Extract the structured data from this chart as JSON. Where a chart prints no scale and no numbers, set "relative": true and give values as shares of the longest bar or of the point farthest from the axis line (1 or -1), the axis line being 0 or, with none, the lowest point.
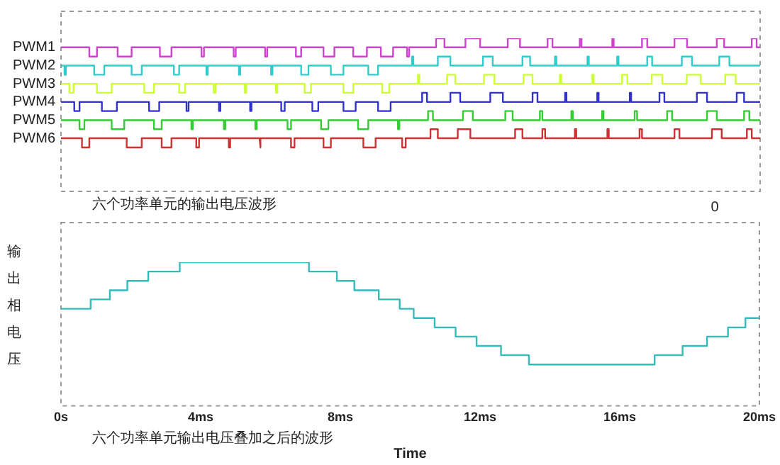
{
  "chart_data": [
    {
      "type": "line",
      "relative": true,
      "xlim": [
        0,
        20
      ],
      "grid": false,
      "legend": false,
      "annotations": [
        "六个功率单元的输出电压波形",
        "0"
      ],
      "series": [
        {
          "name": "PWM1",
          "color": "#cc44cc",
          "x": [
            0,
            0.81,
            0.81,
            1.03,
            1.03,
            1.62,
            1.62,
            2.02,
            2.02,
            2.83,
            2.83,
            3.16,
            3.16,
            4.02,
            4.02,
            4.09,
            4.09,
            4.94,
            4.94,
            5.0,
            5.0,
            5.84,
            5.84,
            5.9,
            5.9,
            6.72,
            6.72,
            6.87,
            6.87,
            7.51,
            7.51,
            7.82,
            7.82,
            8.36,
            8.36,
            8.75,
            8.75,
            9.15,
            9.15,
            9.5,
            9.5,
            9.9,
            9.9,
            9.96,
            9.96,
            10.73,
            10.73,
            10.97,
            10.97,
            11.57,
            11.57,
            11.99,
            11.99,
            12.78,
            12.78,
            13.13,
            13.13,
            13.92,
            13.92,
            14.06,
            14.06,
            14.84,
            14.84,
            14.89,
            14.89,
            15.77,
            15.77,
            15.81,
            15.81,
            16.62,
            16.62,
            16.77,
            16.77,
            17.55,
            17.55,
            17.91,
            17.91,
            18.76,
            18.76,
            18.97,
            18.97,
            19.76,
            19.76,
            19.9,
            19.9,
            20
          ],
          "values": [
            0.941,
            0.941,
            0.881,
            0.881,
            0.941,
            0.941,
            0.881,
            0.881,
            0.941,
            0.941,
            0.881,
            0.881,
            0.941,
            0.941,
            0.881,
            0.881,
            0.941,
            0.941,
            0.881,
            0.881,
            0.941,
            0.941,
            0.881,
            0.881,
            0.941,
            0.941,
            0.881,
            0.881,
            0.941,
            0.941,
            0.881,
            0.881,
            0.941,
            0.941,
            0.881,
            0.881,
            0.941,
            0.941,
            0.881,
            0.881,
            0.941,
            0.941,
            0.881,
            0.881,
            0.941,
            0.941,
            1,
            1,
            0.941,
            0.941,
            1,
            1,
            0.941,
            0.941,
            1,
            1,
            0.941,
            0.941,
            1,
            1,
            0.941,
            0.941,
            1,
            1,
            0.941,
            0.941,
            1,
            1,
            0.941,
            0.941,
            1,
            1,
            0.941,
            0.941,
            1,
            1,
            0.941,
            0.941,
            1,
            1,
            0.941,
            0.941,
            1,
            1,
            0.941,
            0.941
          ]
        },
        {
          "name": "PWM2",
          "color": "#33cccc",
          "x": [
            0,
            0.1,
            0.1,
            0.14,
            0.14,
            0.95,
            0.95,
            1.24,
            1.24,
            2.02,
            2.02,
            2.31,
            2.31,
            3.23,
            3.23,
            3.38,
            3.38,
            4.16,
            4.16,
            4.2,
            4.2,
            5.09,
            5.09,
            5.13,
            5.13,
            6.01,
            6.01,
            6.05,
            6.05,
            6.87,
            6.87,
            7.08,
            7.08,
            7.72,
            7.72,
            8.08,
            8.08,
            8.79,
            8.79,
            9.07,
            9.07,
            10.04,
            10.04,
            10.08,
            10.08,
            10.78,
            10.78,
            11.14,
            11.14,
            12.07,
            12.07,
            12.35,
            12.35,
            13.2,
            13.2,
            13.42,
            13.42,
            14.13,
            14.13,
            14.17,
            14.17,
            15.06,
            15.06,
            15.1,
            15.1,
            15.91,
            15.91,
            15.95,
            15.95,
            16.77,
            16.77,
            16.91,
            16.91,
            17.76,
            17.76,
            18.05,
            18.05,
            18.83,
            18.83,
            19.12,
            19.12,
            20
          ],
          "values": [
            0.822,
            0.822,
            0.762,
            0.762,
            0.822,
            0.822,
            0.762,
            0.762,
            0.822,
            0.822,
            0.762,
            0.762,
            0.822,
            0.822,
            0.762,
            0.762,
            0.822,
            0.822,
            0.762,
            0.762,
            0.822,
            0.822,
            0.762,
            0.762,
            0.822,
            0.822,
            0.762,
            0.762,
            0.822,
            0.822,
            0.762,
            0.762,
            0.822,
            0.822,
            0.762,
            0.762,
            0.822,
            0.822,
            0.762,
            0.762,
            0.822,
            0.822,
            0.881,
            0.881,
            0.822,
            0.822,
            0.881,
            0.881,
            0.822,
            0.822,
            0.881,
            0.881,
            0.822,
            0.822,
            0.881,
            0.881,
            0.822,
            0.822,
            0.881,
            0.881,
            0.822,
            0.822,
            0.881,
            0.881,
            0.822,
            0.822,
            0.881,
            0.881,
            0.822,
            0.822,
            0.881,
            0.881,
            0.822,
            0.822,
            0.881,
            0.881,
            0.822,
            0.822,
            0.881,
            0.881,
            0.822,
            0.822
          ]
        },
        {
          "name": "PWM3",
          "color": "#ccff33",
          "x": [
            0,
            0.24,
            0.24,
            0.36,
            0.36,
            1.03,
            1.03,
            1.45,
            1.45,
            2.38,
            2.38,
            2.66,
            2.66,
            3.38,
            3.38,
            3.55,
            3.55,
            4.37,
            4.37,
            4.42,
            4.42,
            5.26,
            5.26,
            5.3,
            5.3,
            6.15,
            6.15,
            6.19,
            6.19,
            6.97,
            6.97,
            7.15,
            7.15,
            8.08,
            8.08,
            8.36,
            8.36,
            9.19,
            9.19,
            9.39,
            9.39,
            10.21,
            10.21,
            10.25,
            10.25,
            11.04,
            11.04,
            11.28,
            11.28,
            12.1,
            12.1,
            12.4,
            12.4,
            13.23,
            13.23,
            13.49,
            13.49,
            14.27,
            14.27,
            14.31,
            14.31,
            15.2,
            15.2,
            15.24,
            15.24,
            16.05,
            16.05,
            16.2,
            16.2,
            16.9,
            16.9,
            17.2,
            17.2,
            17.9,
            17.9,
            18.3,
            18.3,
            19.0,
            19.0,
            19.3,
            19.3,
            20
          ],
          "values": [
            0.703,
            0.703,
            0.644,
            0.644,
            0.703,
            0.703,
            0.644,
            0.644,
            0.703,
            0.703,
            0.644,
            0.644,
            0.703,
            0.703,
            0.644,
            0.644,
            0.703,
            0.703,
            0.644,
            0.644,
            0.703,
            0.703,
            0.644,
            0.644,
            0.703,
            0.703,
            0.644,
            0.644,
            0.703,
            0.703,
            0.644,
            0.644,
            0.703,
            0.703,
            0.644,
            0.644,
            0.703,
            0.703,
            0.644,
            0.644,
            0.703,
            0.703,
            0.762,
            0.762,
            0.703,
            0.703,
            0.762,
            0.762,
            0.703,
            0.703,
            0.762,
            0.762,
            0.703,
            0.703,
            0.762,
            0.762,
            0.703,
            0.703,
            0.762,
            0.762,
            0.703,
            0.703,
            0.762,
            0.762,
            0.703,
            0.703,
            0.762,
            0.762,
            0.703,
            0.703,
            0.762,
            0.762,
            0.703,
            0.703,
            0.762,
            0.762,
            0.703,
            0.703,
            0.762,
            0.762,
            0.703,
            0.703
          ]
        },
        {
          "name": "PWM4",
          "color": "#3333cc",
          "x": [
            0,
            0.38,
            0.38,
            0.53,
            0.53,
            1.17,
            1.17,
            1.6,
            1.6,
            2.52,
            2.52,
            2.81,
            2.81,
            3.59,
            3.59,
            3.65,
            3.65,
            4.52,
            4.52,
            4.56,
            4.56,
            5.41,
            5.41,
            5.45,
            5.45,
            6.3,
            6.3,
            6.4,
            6.4,
            7.19,
            7.19,
            7.36,
            7.36,
            8.08,
            8.08,
            8.43,
            8.43,
            9.07,
            9.07,
            9.43,
            9.43,
            10.33,
            10.33,
            10.47,
            10.47,
            11.14,
            11.14,
            11.42,
            11.42,
            12.28,
            12.28,
            12.64,
            12.64,
            13.49,
            13.49,
            13.63,
            13.63,
            14.42,
            14.42,
            14.46,
            14.46,
            15.34,
            15.34,
            15.38,
            15.38,
            16.27,
            16.27,
            16.31,
            16.31,
            17.12,
            17.12,
            17.26,
            17.26,
            18.19,
            18.19,
            18.48,
            18.48,
            19.33,
            19.33,
            19.54,
            19.54,
            20
          ],
          "values": [
            0.584,
            0.584,
            0.525,
            0.525,
            0.584,
            0.584,
            0.525,
            0.525,
            0.584,
            0.584,
            0.525,
            0.525,
            0.584,
            0.584,
            0.525,
            0.525,
            0.584,
            0.584,
            0.525,
            0.525,
            0.584,
            0.584,
            0.525,
            0.525,
            0.584,
            0.584,
            0.525,
            0.525,
            0.584,
            0.584,
            0.525,
            0.525,
            0.584,
            0.584,
            0.525,
            0.525,
            0.584,
            0.584,
            0.525,
            0.525,
            0.584,
            0.584,
            0.644,
            0.644,
            0.584,
            0.584,
            0.644,
            0.644,
            0.584,
            0.584,
            0.644,
            0.644,
            0.584,
            0.584,
            0.644,
            0.644,
            0.584,
            0.584,
            0.644,
            0.644,
            0.584,
            0.584,
            0.644,
            0.644,
            0.584,
            0.584,
            0.644,
            0.644,
            0.584,
            0.584,
            0.644,
            0.644,
            0.584,
            0.584,
            0.644,
            0.644,
            0.584,
            0.584,
            0.644,
            0.644,
            0.584,
            0.584
          ]
        },
        {
          "name": "PWM5",
          "color": "#33cc33",
          "x": [
            0,
            0.53,
            0.53,
            0.67,
            0.67,
            1.45,
            1.45,
            1.81,
            1.81,
            2.66,
            2.66,
            2.88,
            2.88,
            3.73,
            3.73,
            3.77,
            3.77,
            4.66,
            4.66,
            4.7,
            4.7,
            5.56,
            5.56,
            5.6,
            5.6,
            6.48,
            6.48,
            6.58,
            6.58,
            7.44,
            7.44,
            7.65,
            7.65,
            8.5,
            8.5,
            8.79,
            8.79,
            9.64,
            9.64,
            9.68,
            9.68,
            10.5,
            10.5,
            10.64,
            10.64,
            11.5,
            11.5,
            11.78,
            11.78,
            12.71,
            12.71,
            12.92,
            12.92,
            13.7,
            13.7,
            13.77,
            13.77,
            14.6,
            14.6,
            14.64,
            14.64,
            15.48,
            15.48,
            15.52,
            15.52,
            16.41,
            16.41,
            16.48,
            16.48,
            17.34,
            17.34,
            17.48,
            17.48,
            18.48,
            18.48,
            18.76,
            18.76,
            19.54,
            19.54,
            19.69,
            19.69,
            20
          ],
          "values": [
            0.465,
            0.465,
            0.406,
            0.406,
            0.465,
            0.465,
            0.406,
            0.406,
            0.465,
            0.465,
            0.406,
            0.406,
            0.465,
            0.465,
            0.406,
            0.406,
            0.465,
            0.465,
            0.406,
            0.406,
            0.465,
            0.465,
            0.406,
            0.406,
            0.465,
            0.465,
            0.406,
            0.406,
            0.465,
            0.465,
            0.406,
            0.406,
            0.465,
            0.465,
            0.406,
            0.406,
            0.465,
            0.465,
            0.406,
            0.406,
            0.465,
            0.465,
            0.525,
            0.525,
            0.465,
            0.465,
            0.525,
            0.525,
            0.465,
            0.465,
            0.525,
            0.525,
            0.465,
            0.465,
            0.525,
            0.525,
            0.465,
            0.465,
            0.525,
            0.525,
            0.465,
            0.465,
            0.525,
            0.525,
            0.465,
            0.465,
            0.525,
            0.525,
            0.465,
            0.465,
            0.525,
            0.525,
            0.465,
            0.465,
            0.525,
            0.525,
            0.465,
            0.465,
            0.525,
            0.525,
            0.465,
            0.465
          ]
        },
        {
          "name": "PWM6",
          "color": "#cc3333",
          "x": [
            0,
            0.6,
            0.6,
            0.81,
            0.81,
            1.88,
            1.88,
            2.31,
            2.31,
            2.88,
            2.88,
            3.16,
            3.16,
            3.87,
            3.87,
            3.95,
            3.95,
            4.8,
            4.8,
            4.84,
            4.84,
            5.68,
            5.68,
            5.72,
            5.72,
            6.58,
            6.58,
            6.68,
            6.68,
            7.51,
            7.51,
            7.72,
            7.72,
            8.65,
            8.65,
            9.0,
            9.0,
            9.76,
            9.76,
            9.86,
            9.86,
            10.57,
            10.57,
            10.78,
            10.78,
            11.35,
            11.35,
            11.71,
            11.71,
            12.99,
            12.99,
            13.2,
            13.2,
            13.77,
            13.77,
            13.85,
            13.85,
            14.7,
            14.7,
            14.74,
            14.74,
            15.63,
            15.63,
            15.67,
            15.67,
            16.55,
            16.55,
            16.62,
            16.62,
            17.55,
            17.55,
            17.69,
            17.69,
            18.62,
            18.62,
            18.9,
            18.9,
            19.62,
            19.62,
            19.76,
            19.76,
            20
          ],
          "values": [
            0.347,
            0.347,
            0.287,
            0.287,
            0.347,
            0.347,
            0.287,
            0.287,
            0.347,
            0.347,
            0.287,
            0.287,
            0.347,
            0.347,
            0.287,
            0.287,
            0.347,
            0.347,
            0.287,
            0.287,
            0.347,
            0.347,
            0.287,
            0.287,
            0.347,
            0.347,
            0.287,
            0.287,
            0.347,
            0.347,
            0.287,
            0.287,
            0.347,
            0.347,
            0.287,
            0.287,
            0.347,
            0.347,
            0.287,
            0.287,
            0.347,
            0.347,
            0.406,
            0.406,
            0.347,
            0.347,
            0.406,
            0.406,
            0.347,
            0.347,
            0.406,
            0.406,
            0.347,
            0.347,
            0.406,
            0.406,
            0.347,
            0.347,
            0.406,
            0.406,
            0.347,
            0.347,
            0.406,
            0.406,
            0.347,
            0.347,
            0.406,
            0.406,
            0.347,
            0.347,
            0.406,
            0.406,
            0.347,
            0.347,
            0.406,
            0.406,
            0.347,
            0.347,
            0.406,
            0.406,
            0.347,
            0.347
          ]
        }
      ]
    },
    {
      "type": "line",
      "relative": true,
      "xlim": [
        0,
        20
      ],
      "grid": false,
      "legend": false,
      "xticks": [
        {
          "value": 0,
          "label": "0s"
        },
        {
          "value": 4,
          "label": "4ms"
        },
        {
          "value": 8,
          "label": "8ms"
        },
        {
          "value": 12,
          "label": "12ms"
        },
        {
          "value": 16,
          "label": "16ms"
        },
        {
          "value": 20,
          "label": "20ms"
        }
      ],
      "xlabel": "Time",
      "ylabel": "输出相电压",
      "annotations": [
        "六个功率单元输出电压叠加之后的波形"
      ],
      "series": [
        {
          "color": "#33bbbb",
          "x": [
            0,
            0.85,
            0.85,
            1.4,
            1.4,
            1.9,
            1.9,
            2.5,
            2.5,
            3.4,
            3.4,
            7.1,
            7.1,
            7.9,
            7.9,
            8.4,
            8.4,
            9.1,
            9.1,
            9.7,
            9.7,
            10.1,
            10.1,
            10.7,
            10.7,
            11.3,
            11.3,
            11.9,
            11.9,
            12.6,
            12.6,
            13.4,
            13.4,
            17.0,
            17.0,
            17.8,
            17.8,
            18.5,
            18.5,
            19.1,
            19.1,
            19.6,
            19.6,
            20
          ],
          "values": [
            0.676,
            0.676,
            0.741,
            0.741,
            0.805,
            0.805,
            0.87,
            0.87,
            0.935,
            0.935,
            1,
            1,
            0.935,
            0.935,
            0.87,
            0.87,
            0.805,
            0.805,
            0.741,
            0.741,
            0.676,
            0.676,
            0.611,
            0.611,
            0.546,
            0.546,
            0.482,
            0.482,
            0.417,
            0.417,
            0.352,
            0.352,
            0.287,
            0.287,
            0.352,
            0.352,
            0.417,
            0.417,
            0.482,
            0.482,
            0.546,
            0.546,
            0.611,
            0.611
          ]
        }
      ]
    }
  ]
}
